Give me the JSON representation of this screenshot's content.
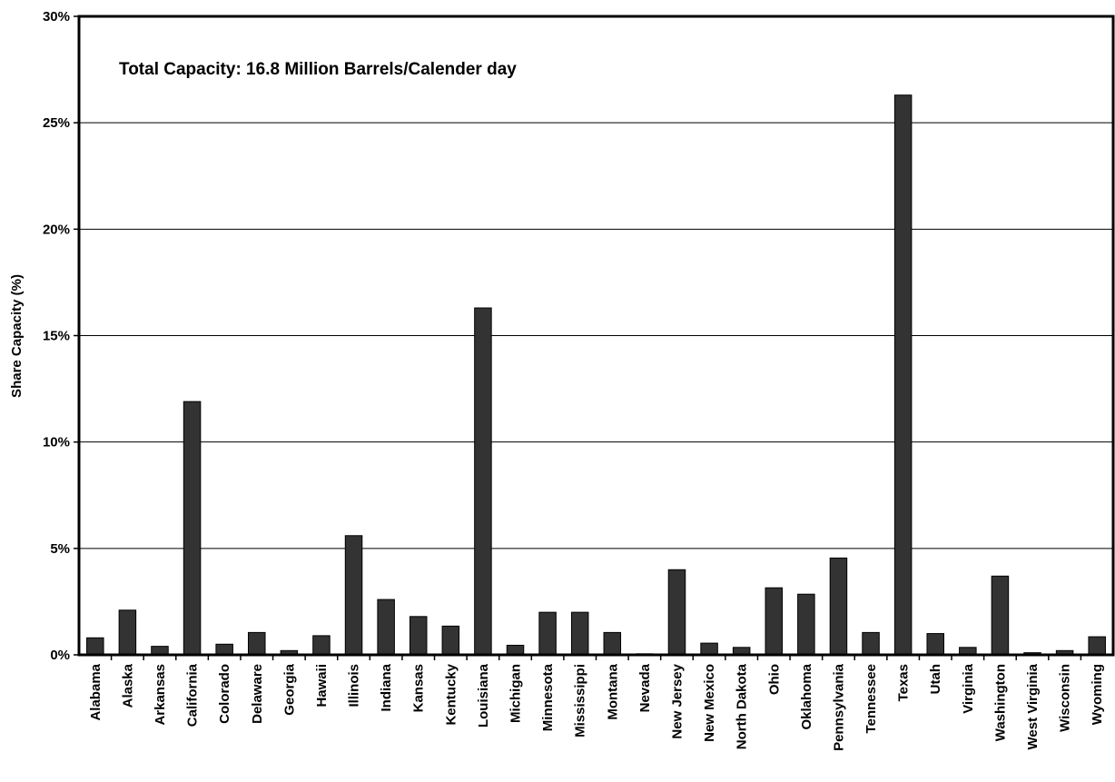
{
  "chart_data": {
    "type": "bar",
    "title": "Total Capacity: 16.8 Million Barrels/Calender day",
    "xlabel": "",
    "ylabel": "Share Capacity (%)",
    "ylim": [
      0,
      30
    ],
    "yticks": [
      0,
      5,
      10,
      15,
      20,
      25,
      30
    ],
    "ytick_labels": [
      "0%",
      "5%",
      "10%",
      "15%",
      "20%",
      "25%",
      "30%"
    ],
    "grid": true,
    "bar_color": "#333333",
    "categories": [
      "Alabama",
      "Alaska",
      "Arkansas",
      "California",
      "Colorado",
      "Delaware",
      "Georgia",
      "Hawaii",
      "Illinois",
      "Indiana",
      "Kansas",
      "Kentucky",
      "Louisiana",
      "Michigan",
      "Minnesota",
      "Mississippi",
      "Montana",
      "Nevada",
      "New Jersey",
      "New Mexico",
      "North Dakota",
      "Ohio",
      "Oklahoma",
      "Pennsylvania",
      "Tennessee",
      "Texas",
      "Utah",
      "Virginia",
      "Washington",
      "West Virginia",
      "Wisconsin",
      "Wyoming"
    ],
    "values": [
      0.8,
      2.1,
      0.4,
      11.9,
      0.5,
      1.05,
      0.2,
      0.9,
      5.6,
      2.6,
      1.8,
      1.35,
      16.3,
      0.45,
      2.0,
      2.0,
      1.05,
      0.05,
      4.0,
      0.55,
      0.35,
      3.15,
      2.85,
      4.55,
      1.05,
      26.3,
      1.0,
      0.35,
      3.7,
      0.1,
      0.2,
      0.85
    ]
  }
}
